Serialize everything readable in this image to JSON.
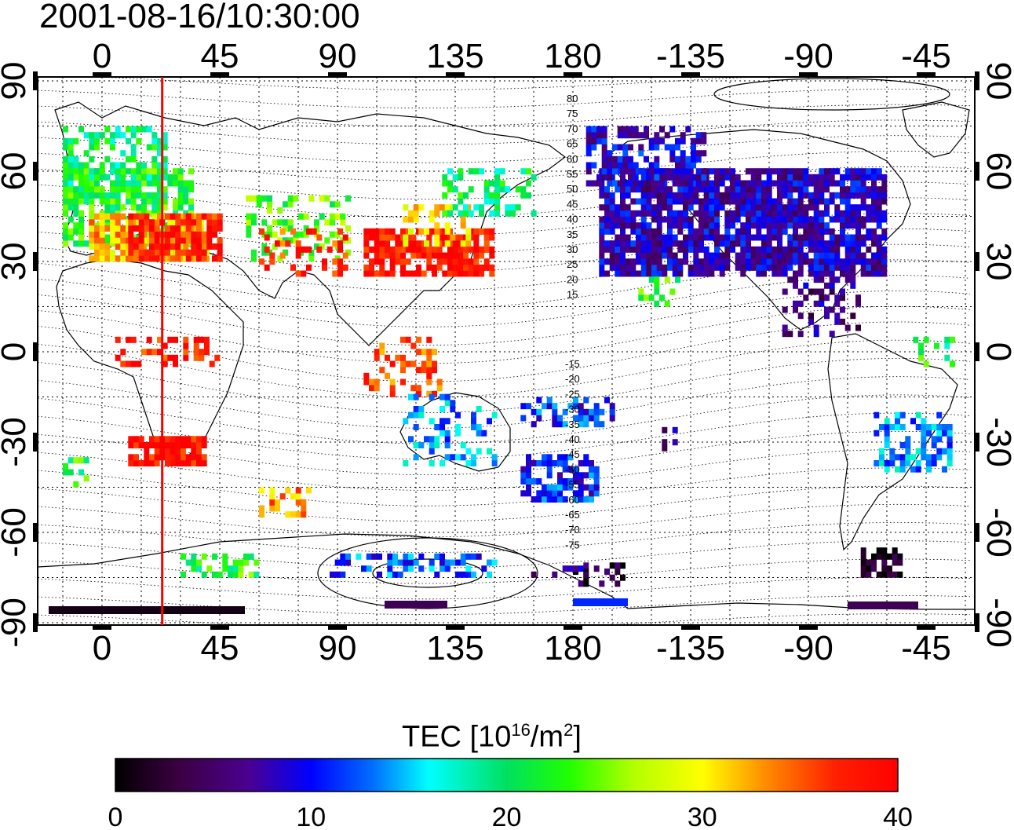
{
  "title": "2001-08-16/10:30:00",
  "map": {
    "lon_ticks": [
      "0",
      "45",
      "90",
      "135",
      "180",
      "-135",
      "-90",
      "-45"
    ],
    "lat_ticks": [
      "90",
      "60",
      "30",
      "0",
      "-30",
      "-60",
      "-90"
    ],
    "mlat_north": [
      "80",
      "75",
      "70",
      "65",
      "60",
      "55",
      "50",
      "45",
      "40",
      "35",
      "30",
      "25",
      "20",
      "15"
    ],
    "mlat_south": [
      "-15",
      "-20",
      "-25",
      "-30",
      "-35",
      "-40",
      "-45",
      "-50",
      "-55",
      "-60",
      "-65",
      "-70",
      "-75"
    ],
    "meridian_marker_lon": 23,
    "marker_color": "#ff0000"
  },
  "colorbar": {
    "label_prefix": "TEC  [10",
    "label_exp1": "16",
    "label_mid": "/m",
    "label_exp2": "2",
    "label_suffix": "]",
    "ticks": [
      "0",
      "10",
      "20",
      "30",
      "40"
    ],
    "min": 0,
    "max": 40
  }
}
